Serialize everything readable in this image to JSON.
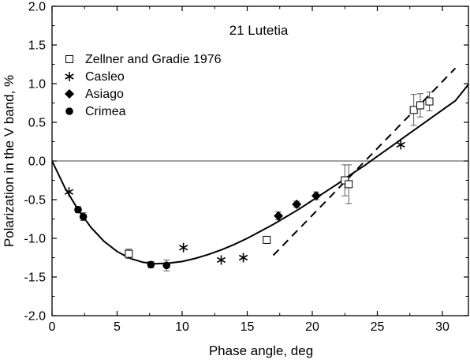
{
  "chart_data": {
    "type": "scatter",
    "title": "21 Lutetia",
    "xlabel": "Phase angle, deg",
    "ylabel": "Polarization in the V band, %",
    "xlim": [
      0,
      32
    ],
    "ylim": [
      -2.0,
      2.0
    ],
    "x_ticks": [
      0,
      5,
      10,
      15,
      20,
      25,
      30
    ],
    "y_ticks": [
      -2.0,
      -1.5,
      -1.0,
      -0.5,
      0.0,
      0.5,
      1.0,
      1.5,
      2.0
    ],
    "x_tick_labels": [
      "0",
      "5",
      "10",
      "15",
      "20",
      "25",
      "30"
    ],
    "y_tick_labels": [
      "-2.0",
      "-1.5",
      "-1.0",
      "-0.5",
      "0.0",
      "0.5",
      "1.0",
      "1.5",
      "2.0"
    ],
    "legend_position": "top-left",
    "series": [
      {
        "name": "Zellner and Gradie 1976",
        "marker": "open-square",
        "points": [
          {
            "x": 5.9,
            "y": -1.2,
            "err": 0.06
          },
          {
            "x": 16.5,
            "y": -1.02,
            "err": 0.04
          },
          {
            "x": 22.5,
            "y": -0.25,
            "err": 0.2
          },
          {
            "x": 22.8,
            "y": -0.3,
            "err": 0.25
          },
          {
            "x": 27.8,
            "y": 0.66,
            "err": 0.2
          },
          {
            "x": 28.3,
            "y": 0.72,
            "err": 0.15
          },
          {
            "x": 29.0,
            "y": 0.77,
            "err": 0.12
          }
        ]
      },
      {
        "name": "Casleo",
        "marker": "asterisk",
        "points": [
          {
            "x": 1.3,
            "y": -0.4
          },
          {
            "x": 10.1,
            "y": -1.12
          },
          {
            "x": 13.0,
            "y": -1.28
          },
          {
            "x": 14.7,
            "y": -1.25
          },
          {
            "x": 26.8,
            "y": 0.21
          }
        ]
      },
      {
        "name": "Asiago",
        "marker": "filled-diamond",
        "points": [
          {
            "x": 17.4,
            "y": -0.71,
            "err": 0.05
          },
          {
            "x": 18.8,
            "y": -0.56,
            "err": 0.04
          },
          {
            "x": 20.3,
            "y": -0.45,
            "err": 0.05
          }
        ]
      },
      {
        "name": "Crimea",
        "marker": "filled-circle",
        "points": [
          {
            "x": 2.0,
            "y": -0.63,
            "err": 0.04
          },
          {
            "x": 2.4,
            "y": -0.72,
            "err": 0.05
          },
          {
            "x": 7.6,
            "y": -1.34,
            "err": 0.04
          },
          {
            "x": 8.8,
            "y": -1.35,
            "err": 0.07
          }
        ]
      }
    ],
    "curves": [
      {
        "style": "solid",
        "points": [
          [
            0,
            0.0
          ],
          [
            1,
            -0.35
          ],
          [
            2,
            -0.63
          ],
          [
            3,
            -0.86
          ],
          [
            4,
            -1.04
          ],
          [
            5,
            -1.17
          ],
          [
            6,
            -1.26
          ],
          [
            7,
            -1.31
          ],
          [
            8,
            -1.33
          ],
          [
            9,
            -1.32
          ],
          [
            10,
            -1.3
          ],
          [
            11,
            -1.26
          ],
          [
            12,
            -1.21
          ],
          [
            13,
            -1.15
          ],
          [
            14,
            -1.08
          ],
          [
            15,
            -1.0
          ],
          [
            16,
            -0.91
          ],
          [
            17,
            -0.82
          ],
          [
            18,
            -0.72
          ],
          [
            19,
            -0.62
          ],
          [
            20,
            -0.51
          ],
          [
            21,
            -0.4
          ],
          [
            22,
            -0.29
          ],
          [
            23,
            -0.17
          ],
          [
            24,
            -0.06
          ],
          [
            25,
            0.06
          ],
          [
            26,
            0.18
          ],
          [
            27,
            0.3
          ],
          [
            28,
            0.42
          ],
          [
            29,
            0.54
          ],
          [
            30,
            0.66
          ],
          [
            31,
            0.78
          ],
          [
            32,
            0.99
          ]
        ]
      },
      {
        "style": "dashed",
        "points": [
          [
            17,
            -1.22
          ],
          [
            31,
            1.2
          ]
        ]
      }
    ],
    "zero_line": true,
    "grid": false
  }
}
